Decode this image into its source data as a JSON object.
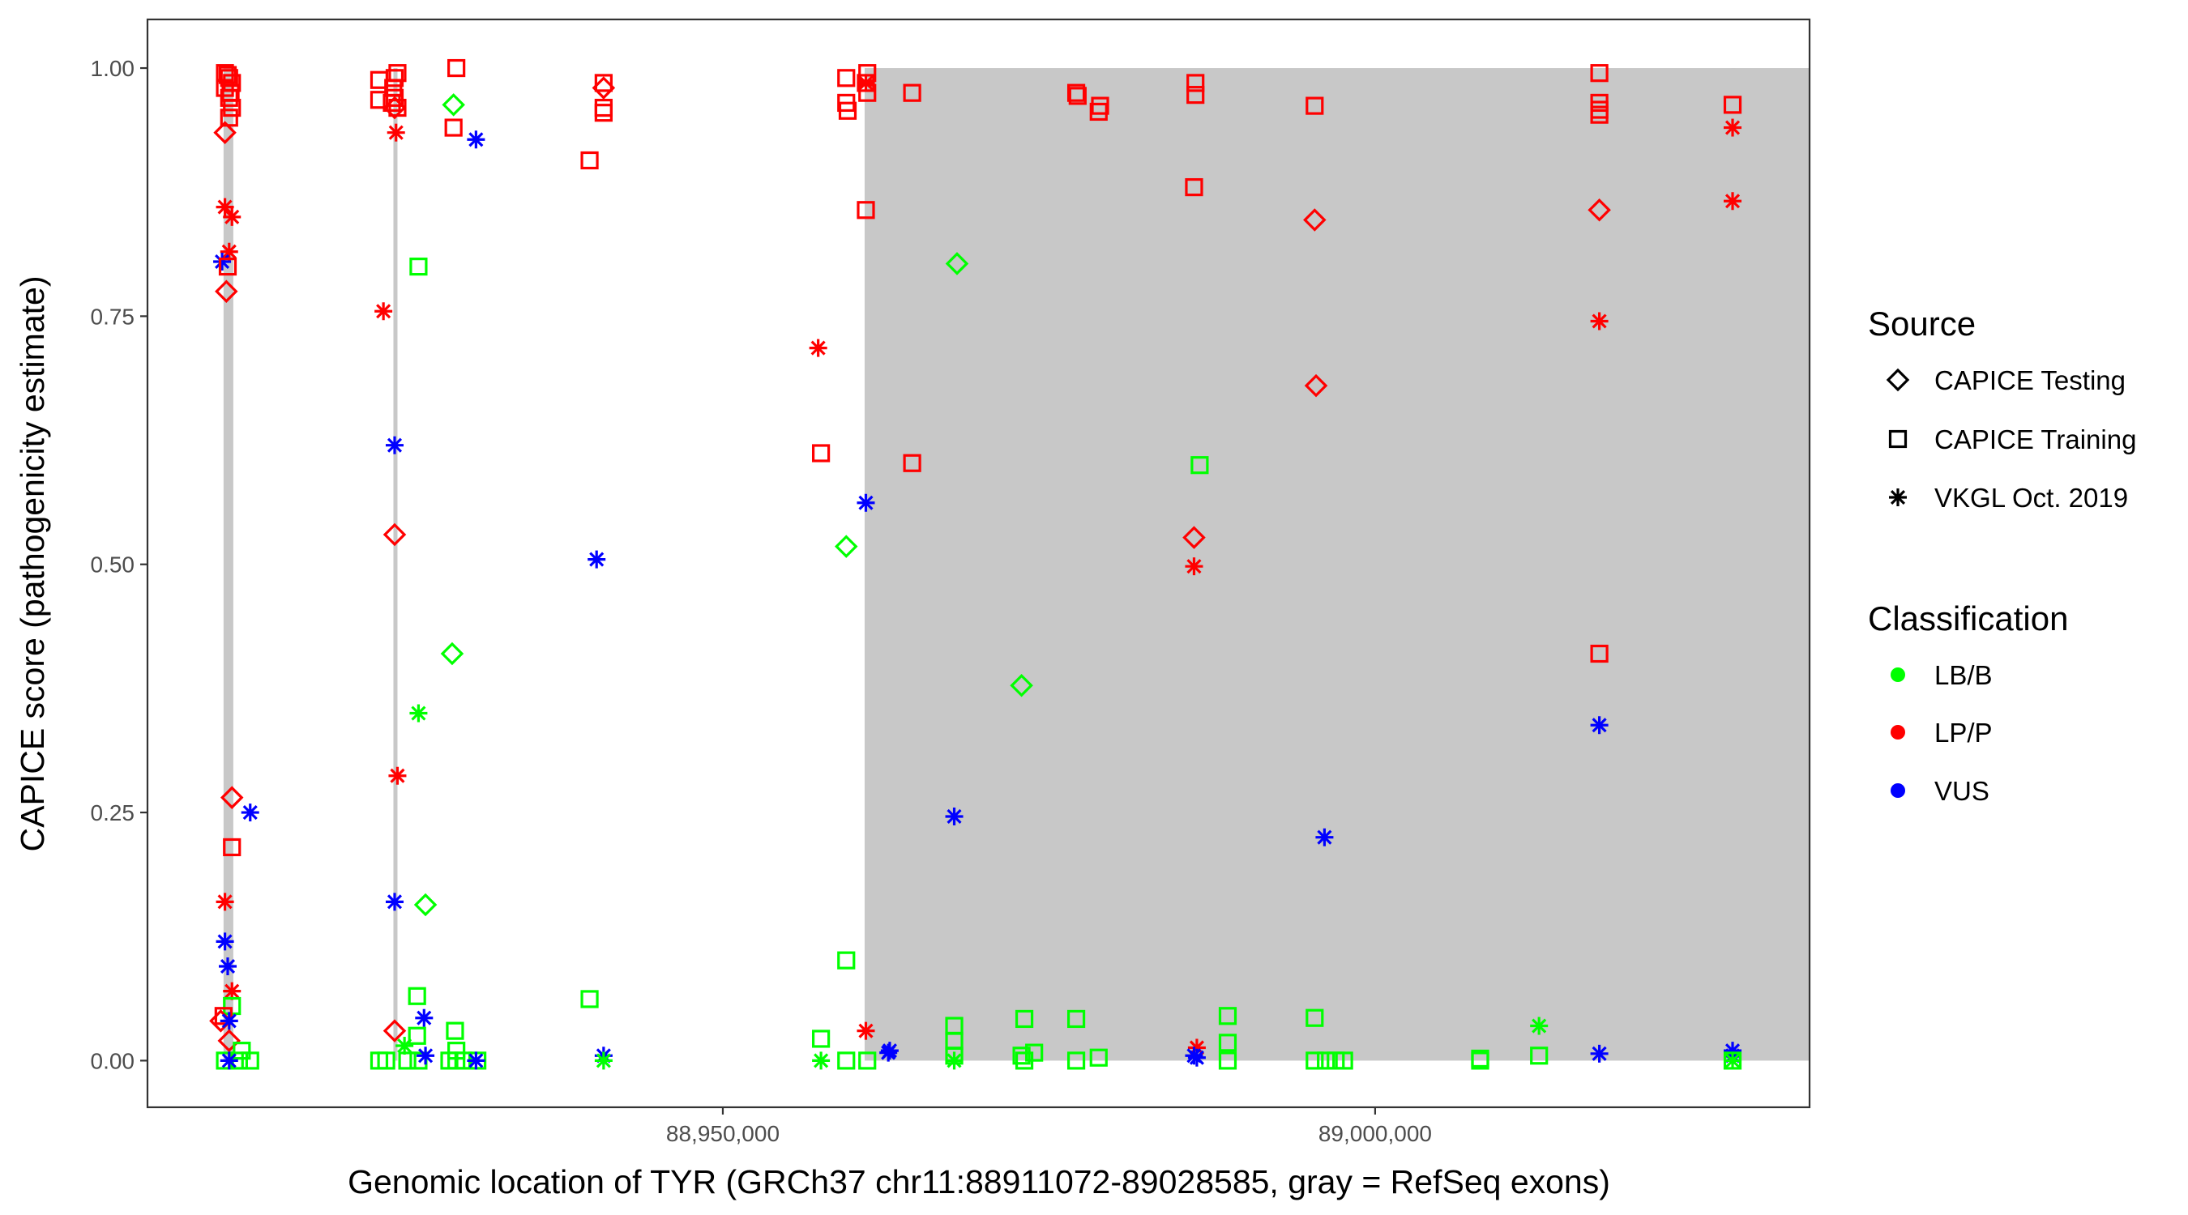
{
  "chart_data": {
    "type": "scatter",
    "title": "",
    "xlabel": "Genomic location of TYR (GRCh37 chr11:88911072-89028585, gray = RefSeq exons)",
    "ylabel": "CAPICE score (pathogenicity estimate)",
    "xlim": [
      88905900,
      89033300
    ],
    "ylim": [
      -0.047,
      1.049
    ],
    "x_ticks": [
      {
        "value": 88950000,
        "label": "88,950,000"
      },
      {
        "value": 89000000,
        "label": "89,000,000"
      }
    ],
    "y_ticks": [
      {
        "value": 0,
        "label": "0.00"
      },
      {
        "value": 0.25,
        "label": "0.25"
      },
      {
        "value": 0.5,
        "label": "0.50"
      },
      {
        "value": 0.75,
        "label": "0.75"
      },
      {
        "value": 1,
        "label": "1.00"
      }
    ],
    "grid": false,
    "legend_placement": "right",
    "exons": [
      [
        88911730,
        88912480
      ],
      [
        88924750,
        88924950
      ],
      [
        88960870,
        89961070
      ],
      [
        89017090,
        89017290
      ],
      [
        89027300,
        89027500
      ]
    ],
    "exon_color": "#c8c8c8",
    "source_legend": {
      "title": "Source",
      "items": [
        {
          "code": "T",
          "label": "CAPICE Testing",
          "shape": "diamond"
        },
        {
          "code": "R",
          "label": "CAPICE Training",
          "shape": "square"
        },
        {
          "code": "V",
          "label": "VKGL Oct. 2019",
          "shape": "asterisk"
        }
      ]
    },
    "class_legend": {
      "title": "Classification",
      "items": [
        {
          "code": "G",
          "label": "LB/B",
          "color": "#00ff00"
        },
        {
          "code": "R",
          "label": "LP/P",
          "color": "#ff0000"
        },
        {
          "code": "B",
          "label": "VUS",
          "color": "#0000ff"
        }
      ]
    },
    "points": [
      [
        88911838,
        0.995,
        "R",
        "R"
      ],
      [
        88912160,
        0.99,
        "R",
        "R"
      ],
      [
        88912375,
        0.985,
        "R",
        "R"
      ],
      [
        88911838,
        0.98,
        "R",
        "R"
      ],
      [
        88912160,
        0.97,
        "R",
        "R"
      ],
      [
        88912375,
        0.96,
        "R",
        "R"
      ],
      [
        88912160,
        0.95,
        "R",
        "R"
      ],
      [
        88912050,
        0.993,
        "R",
        "R"
      ],
      [
        88912270,
        0.975,
        "R",
        "R"
      ],
      [
        88911838,
        0.935,
        "T",
        "R"
      ],
      [
        88911838,
        0.86,
        "V",
        "R"
      ],
      [
        88912375,
        0.85,
        "V",
        "R"
      ],
      [
        88912160,
        0.815,
        "V",
        "R"
      ],
      [
        88911620,
        0.805,
        "V",
        "B"
      ],
      [
        88912050,
        0.8,
        "R",
        "R"
      ],
      [
        88911945,
        0.775,
        "T",
        "R"
      ],
      [
        88912375,
        0.265,
        "T",
        "R"
      ],
      [
        88913773,
        0.25,
        "V",
        "B"
      ],
      [
        88912375,
        0.215,
        "R",
        "R"
      ],
      [
        88911838,
        0.16,
        "V",
        "R"
      ],
      [
        88911838,
        0.12,
        "V",
        "B"
      ],
      [
        88912050,
        0.095,
        "V",
        "B"
      ],
      [
        88912375,
        0.07,
        "V",
        "R"
      ],
      [
        88912375,
        0.055,
        "R",
        "G"
      ],
      [
        88911730,
        0.045,
        "R",
        "R"
      ],
      [
        88911515,
        0.04,
        "T",
        "R"
      ],
      [
        88912160,
        0.04,
        "V",
        "B"
      ],
      [
        88912160,
        0.02,
        "T",
        "R"
      ],
      [
        88913128,
        0.01,
        "R",
        "G"
      ],
      [
        88911838,
        0.0,
        "R",
        "G"
      ],
      [
        88912913,
        0.0,
        "R",
        "G"
      ],
      [
        88913773,
        0.0,
        "R",
        "G"
      ],
      [
        88912160,
        0.0,
        "V",
        "B"
      ],
      [
        88923663,
        0.988,
        "R",
        "R"
      ],
      [
        88923663,
        0.968,
        "R",
        "R"
      ],
      [
        88925060,
        0.995,
        "R",
        "R"
      ],
      [
        88924845,
        0.99,
        "R",
        "R"
      ],
      [
        88924738,
        0.98,
        "R",
        "R"
      ],
      [
        88924845,
        0.97,
        "R",
        "R"
      ],
      [
        88925060,
        0.96,
        "R",
        "R"
      ],
      [
        88924630,
        0.965,
        "R",
        "R"
      ],
      [
        88924845,
        0.96,
        "T",
        "R"
      ],
      [
        88924953,
        0.935,
        "V",
        "R"
      ],
      [
        88929575,
        1.0,
        "R",
        "R"
      ],
      [
        88929360,
        0.94,
        "R",
        "R"
      ],
      [
        88929360,
        0.963,
        "T",
        "G"
      ],
      [
        88931080,
        0.928,
        "V",
        "B"
      ],
      [
        88926673,
        0.8,
        "R",
        "G"
      ],
      [
        88923985,
        0.755,
        "V",
        "R"
      ],
      [
        88924845,
        0.62,
        "V",
        "B"
      ],
      [
        88924845,
        0.53,
        "T",
        "R"
      ],
      [
        88929253,
        0.41,
        "T",
        "G"
      ],
      [
        88926673,
        0.35,
        "V",
        "G"
      ],
      [
        88925060,
        0.287,
        "V",
        "R"
      ],
      [
        88924845,
        0.16,
        "V",
        "B"
      ],
      [
        88927210,
        0.157,
        "T",
        "G"
      ],
      [
        88926565,
        0.065,
        "R",
        "G"
      ],
      [
        88927100,
        0.043,
        "V",
        "B"
      ],
      [
        88924845,
        0.03,
        "T",
        "R"
      ],
      [
        88929470,
        0.03,
        "R",
        "G"
      ],
      [
        88926565,
        0.025,
        "R",
        "G"
      ],
      [
        88925600,
        0.015,
        "V",
        "G"
      ],
      [
        88929575,
        0.01,
        "R",
        "G"
      ],
      [
        88923663,
        0.0,
        "R",
        "G"
      ],
      [
        88924200,
        0.0,
        "R",
        "G"
      ],
      [
        88925815,
        0.0,
        "R",
        "G"
      ],
      [
        88926673,
        0.0,
        "R",
        "G"
      ],
      [
        88929040,
        0.0,
        "R",
        "G"
      ],
      [
        88929575,
        0.0,
        "R",
        "G"
      ],
      [
        88930113,
        0.0,
        "R",
        "G"
      ],
      [
        88931188,
        0.0,
        "R",
        "G"
      ],
      [
        88927210,
        0.005,
        "V",
        "B"
      ],
      [
        88931080,
        0.0,
        "V",
        "B"
      ],
      [
        88940863,
        0.985,
        "R",
        "R"
      ],
      [
        88940863,
        0.96,
        "R",
        "R"
      ],
      [
        88940863,
        0.955,
        "R",
        "R"
      ],
      [
        88939788,
        0.907,
        "R",
        "R"
      ],
      [
        88940863,
        0.98,
        "T",
        "R"
      ],
      [
        88940325,
        0.505,
        "V",
        "B"
      ],
      [
        88939788,
        0.062,
        "R",
        "G"
      ],
      [
        88940863,
        0.005,
        "V",
        "B"
      ],
      [
        88940863,
        0.0,
        "V",
        "G"
      ],
      [
        88959460,
        0.99,
        "R",
        "R"
      ],
      [
        88959460,
        0.965,
        "R",
        "R"
      ],
      [
        88959568,
        0.957,
        "R",
        "R"
      ],
      [
        88961073,
        0.995,
        "R",
        "R"
      ],
      [
        88960965,
        0.985,
        "R",
        "R"
      ],
      [
        88961073,
        0.975,
        "R",
        "R"
      ],
      [
        88960965,
        0.985,
        "V",
        "R"
      ],
      [
        88964513,
        0.975,
        "R",
        "R"
      ],
      [
        88960965,
        0.857,
        "R",
        "R"
      ],
      [
        88957310,
        0.718,
        "V",
        "R"
      ],
      [
        88957525,
        0.612,
        "R",
        "R"
      ],
      [
        88964513,
        0.602,
        "R",
        "R"
      ],
      [
        88960965,
        0.562,
        "V",
        "B"
      ],
      [
        88959460,
        0.518,
        "T",
        "G"
      ],
      [
        88959460,
        0.101,
        "R",
        "G"
      ],
      [
        88960965,
        0.03,
        "V",
        "R"
      ],
      [
        88957525,
        0.022,
        "R",
        "G"
      ],
      [
        88962685,
        0.008,
        "V",
        "B"
      ],
      [
        88962793,
        0.01,
        "V",
        "B"
      ],
      [
        88957525,
        0.0,
        "V",
        "G"
      ],
      [
        88959460,
        0.0,
        "R",
        "G"
      ],
      [
        88961073,
        0.0,
        "R",
        "G"
      ],
      [
        88967953,
        0.803,
        "T",
        "G"
      ],
      [
        88972898,
        0.378,
        "T",
        "G"
      ],
      [
        88967738,
        0.246,
        "V",
        "B"
      ],
      [
        88967738,
        0.035,
        "R",
        "G"
      ],
      [
        88967738,
        0.02,
        "R",
        "G"
      ],
      [
        88967738,
        0.005,
        "R",
        "G"
      ],
      [
        88967738,
        0.0,
        "V",
        "G"
      ],
      [
        88973113,
        0.042,
        "R",
        "G"
      ],
      [
        88972898,
        0.005,
        "R",
        "G"
      ],
      [
        88973113,
        0.0,
        "R",
        "G"
      ],
      [
        88973865,
        0.008,
        "R",
        "G"
      ],
      [
        88977090,
        0.975,
        "R",
        "R"
      ],
      [
        88977198,
        0.972,
        "R",
        "R"
      ],
      [
        88978918,
        0.962,
        "R",
        "R"
      ],
      [
        88978810,
        0.956,
        "R",
        "R"
      ],
      [
        88977090,
        0.042,
        "R",
        "G"
      ],
      [
        88977090,
        0.0,
        "R",
        "G"
      ],
      [
        88978810,
        0.003,
        "R",
        "G"
      ],
      [
        88986228,
        0.985,
        "R",
        "R"
      ],
      [
        88986228,
        0.973,
        "R",
        "R"
      ],
      [
        88986120,
        0.88,
        "R",
        "R"
      ],
      [
        88986550,
        0.6,
        "R",
        "G"
      ],
      [
        88986120,
        0.527,
        "T",
        "R"
      ],
      [
        88986120,
        0.498,
        "V",
        "R"
      ],
      [
        88986335,
        0.013,
        "V",
        "R"
      ],
      [
        88986120,
        0.005,
        "V",
        "B"
      ],
      [
        88986335,
        0.003,
        "V",
        "B"
      ],
      [
        88988700,
        0.045,
        "R",
        "G"
      ],
      [
        88988700,
        0.018,
        "R",
        "G"
      ],
      [
        88988700,
        0.0,
        "R",
        "G"
      ],
      [
        88995365,
        0.962,
        "R",
        "R"
      ],
      [
        88995365,
        0.847,
        "T",
        "R"
      ],
      [
        88995473,
        0.68,
        "T",
        "R"
      ],
      [
        88996118,
        0.225,
        "V",
        "B"
      ],
      [
        88995365,
        0.043,
        "R",
        "G"
      ],
      [
        88995365,
        0.0,
        "R",
        "G"
      ],
      [
        88996225,
        0.0,
        "R",
        "G"
      ],
      [
        88996978,
        0.0,
        "R",
        "G"
      ],
      [
        88997623,
        0.0,
        "R",
        "G"
      ],
      [
        89008050,
        0.0,
        "R",
        "G"
      ],
      [
        89008050,
        0.002,
        "R",
        "G"
      ],
      [
        89012565,
        0.035,
        "V",
        "G"
      ],
      [
        89012565,
        0.005,
        "R",
        "G"
      ],
      [
        89017188,
        0.995,
        "R",
        "R"
      ],
      [
        89017188,
        0.965,
        "R",
        "R"
      ],
      [
        89017188,
        0.958,
        "R",
        "R"
      ],
      [
        89017188,
        0.953,
        "R",
        "R"
      ],
      [
        89017188,
        0.857,
        "T",
        "R"
      ],
      [
        89017188,
        0.745,
        "V",
        "R"
      ],
      [
        89017188,
        0.41,
        "R",
        "R"
      ],
      [
        89017188,
        0.338,
        "V",
        "B"
      ],
      [
        89017188,
        0.007,
        "V",
        "B"
      ],
      [
        89027400,
        0.963,
        "R",
        "R"
      ],
      [
        89027400,
        0.94,
        "V",
        "R"
      ],
      [
        89027400,
        0.866,
        "V",
        "R"
      ],
      [
        89027400,
        0.01,
        "V",
        "B"
      ],
      [
        89027400,
        0.005,
        "V",
        "B"
      ],
      [
        89027400,
        0.0,
        "V",
        "G"
      ],
      [
        89027400,
        0.0,
        "R",
        "G"
      ]
    ]
  }
}
